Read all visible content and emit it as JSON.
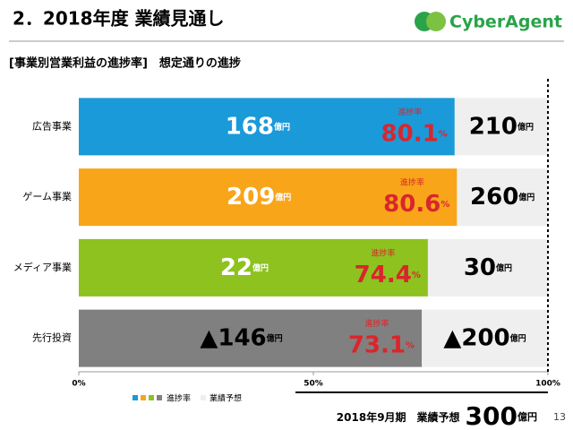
{
  "header": {
    "title": "2．2018年度 業績見通し",
    "logo": "CyberAgent"
  },
  "chart_data": {
    "type": "bar",
    "orientation": "horizontal",
    "subtitle": "[事業別営業利益の進捗率]　想定通りの進捗",
    "categories": [
      "広告事業",
      "ゲーム事業",
      "メディア事業",
      "先行投資"
    ],
    "colors": [
      "#1a9ad9",
      "#f9a51a",
      "#8dc21f",
      "#808080"
    ],
    "background_color": "#efefef",
    "values": [
      80.1,
      80.6,
      74.4,
      73.1
    ],
    "value_caption": "進捗率",
    "value_unit": "%",
    "amounts": [
      168,
      209,
      22,
      -146
    ],
    "amount_labels": [
      "168",
      "209",
      "22",
      "▲146"
    ],
    "forecasts": [
      210,
      260,
      30,
      -200
    ],
    "forecast_labels": [
      "210",
      "260",
      "30",
      "▲200"
    ],
    "amount_unit": "億円",
    "xlim": [
      0,
      100
    ],
    "xticks": [
      {
        "value": 0,
        "label": "0%"
      },
      {
        "value": 50,
        "label": "50%"
      },
      {
        "value": 100,
        "label": "100%"
      }
    ],
    "legend": [
      "進捗率",
      "業績予想"
    ]
  },
  "footer": {
    "period": "2018年9月期　業績予想",
    "total": 300,
    "unit": "億円",
    "page": "13"
  }
}
